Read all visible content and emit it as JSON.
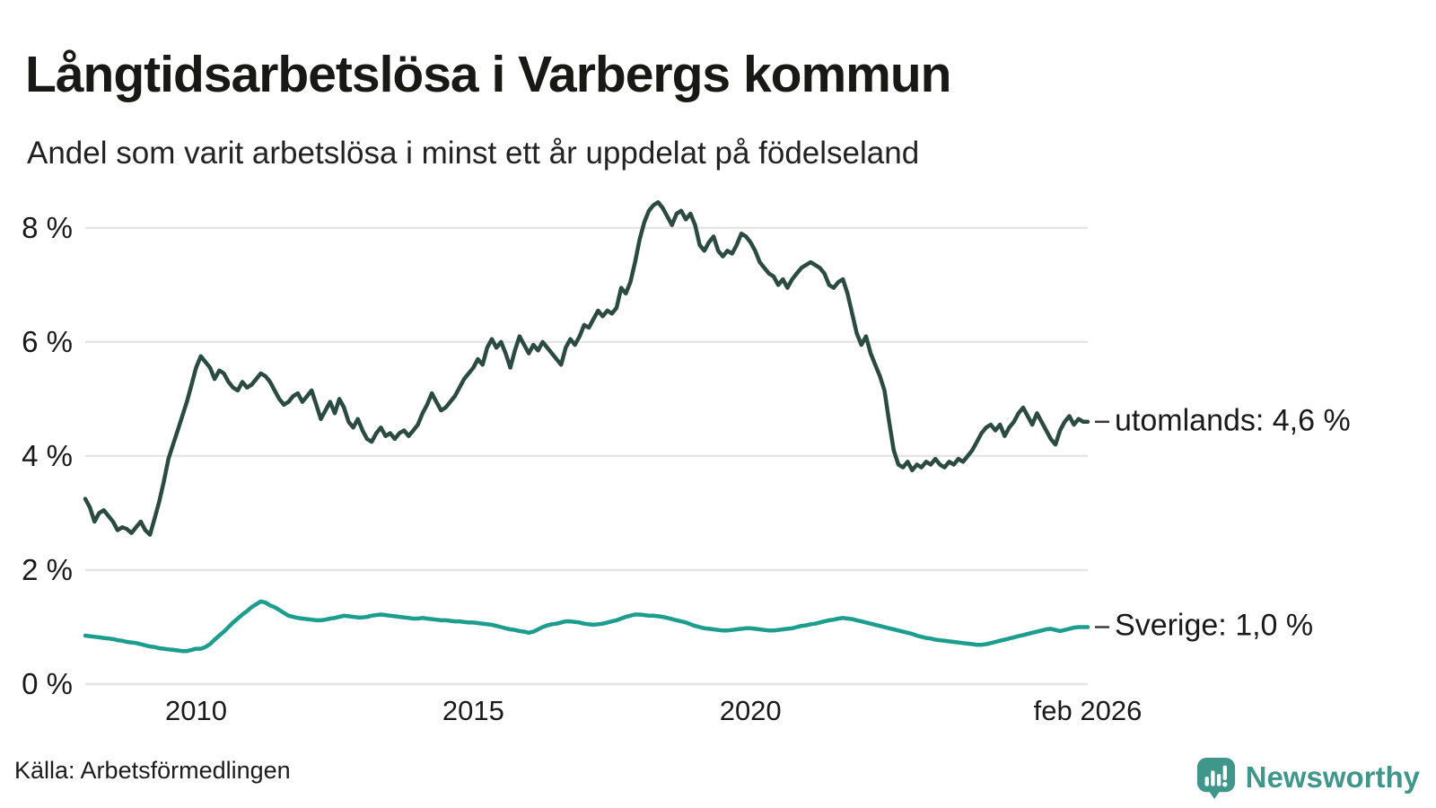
{
  "header": {
    "title": "Långtidsarbetslösa i Varbergs kommun",
    "subtitle": "Andel som varit arbetslösa i minst ett år uppdelat på födelseland"
  },
  "footer": {
    "source": "Källa: Arbetsförmedlingen",
    "brand": "Newsworthy"
  },
  "colors": {
    "utomlands": "#2b4a42",
    "sverige": "#1d9d8d",
    "grid": "#e5e5e8",
    "text": "#1a1a1a",
    "connector": "#3a3a3a",
    "brand": "#3f978b"
  },
  "chart_data": {
    "type": "line",
    "title": "Långtidsarbetslösa i Varbergs kommun",
    "subtitle": "Andel som varit arbetslösa i minst ett år uppdelat på födelseland",
    "x_start": 2008.0,
    "x_step_months": 1,
    "xlim": [
      2008.0,
      2026.083
    ],
    "ylim": [
      0,
      8.88
    ],
    "grid": true,
    "legend_position": "end-of-line-labels",
    "y_ticks": [
      {
        "value": 0,
        "label": "0 %"
      },
      {
        "value": 2,
        "label": "2 %"
      },
      {
        "value": 4,
        "label": "4 %"
      },
      {
        "value": 6,
        "label": "6 %"
      },
      {
        "value": 8,
        "label": "8 %"
      }
    ],
    "x_ticks": [
      {
        "value": 2010,
        "label": "2010"
      },
      {
        "value": 2015,
        "label": "2015"
      },
      {
        "value": 2020,
        "label": "2020"
      },
      {
        "value": 2026.083,
        "label": "feb 2026"
      }
    ],
    "series": [
      {
        "name": "utomlands",
        "end_label": "utomlands: 4,6 %",
        "end_value": "4,6 %",
        "color_key": "utomlands",
        "values": [
          3.25,
          3.1,
          2.85,
          3.0,
          3.05,
          2.95,
          2.85,
          2.7,
          2.75,
          2.72,
          2.65,
          2.75,
          2.85,
          2.7,
          2.62,
          2.9,
          3.2,
          3.55,
          3.95,
          4.2,
          4.45,
          4.7,
          4.95,
          5.25,
          5.55,
          5.75,
          5.65,
          5.55,
          5.35,
          5.5,
          5.45,
          5.3,
          5.2,
          5.15,
          5.3,
          5.2,
          5.25,
          5.35,
          5.45,
          5.4,
          5.3,
          5.15,
          5.0,
          4.9,
          4.95,
          5.05,
          5.1,
          4.95,
          5.05,
          5.15,
          4.9,
          4.65,
          4.8,
          4.95,
          4.75,
          5.0,
          4.85,
          4.6,
          4.5,
          4.65,
          4.45,
          4.3,
          4.25,
          4.4,
          4.5,
          4.35,
          4.4,
          4.3,
          4.4,
          4.45,
          4.35,
          4.45,
          4.55,
          4.75,
          4.9,
          5.1,
          4.95,
          4.8,
          4.85,
          4.95,
          5.05,
          5.2,
          5.35,
          5.45,
          5.55,
          5.7,
          5.6,
          5.9,
          6.05,
          5.9,
          6.0,
          5.8,
          5.55,
          5.85,
          6.1,
          5.95,
          5.8,
          5.95,
          5.85,
          6.0,
          5.9,
          5.8,
          5.7,
          5.6,
          5.9,
          6.05,
          5.95,
          6.1,
          6.3,
          6.25,
          6.4,
          6.55,
          6.45,
          6.55,
          6.5,
          6.6,
          6.95,
          6.85,
          7.05,
          7.4,
          7.8,
          8.1,
          8.3,
          8.4,
          8.45,
          8.35,
          8.2,
          8.05,
          8.25,
          8.3,
          8.15,
          8.25,
          8.05,
          7.7,
          7.6,
          7.75,
          7.85,
          7.6,
          7.5,
          7.6,
          7.55,
          7.7,
          7.9,
          7.85,
          7.75,
          7.6,
          7.4,
          7.3,
          7.2,
          7.15,
          7.0,
          7.1,
          6.95,
          7.1,
          7.2,
          7.3,
          7.35,
          7.4,
          7.35,
          7.3,
          7.2,
          7.0,
          6.95,
          7.05,
          7.1,
          6.85,
          6.5,
          6.15,
          5.95,
          6.1,
          5.8,
          5.6,
          5.4,
          5.15,
          4.6,
          4.1,
          3.85,
          3.8,
          3.9,
          3.75,
          3.85,
          3.8,
          3.9,
          3.85,
          3.95,
          3.85,
          3.8,
          3.9,
          3.85,
          3.95,
          3.9,
          4.0,
          4.1,
          4.25,
          4.4,
          4.5,
          4.55,
          4.45,
          4.55,
          4.35,
          4.5,
          4.6,
          4.75,
          4.85,
          4.7,
          4.55,
          4.75,
          4.6,
          4.45,
          4.3,
          4.2,
          4.45,
          4.6,
          4.7,
          4.55,
          4.65,
          4.6,
          4.6
        ]
      },
      {
        "name": "Sverige",
        "end_label": "Sverige: 1,0 %",
        "end_value": "1,0 %",
        "color_key": "sverige",
        "values": [
          0.85,
          0.84,
          0.83,
          0.82,
          0.81,
          0.8,
          0.79,
          0.77,
          0.76,
          0.74,
          0.73,
          0.72,
          0.7,
          0.68,
          0.66,
          0.65,
          0.63,
          0.62,
          0.61,
          0.6,
          0.59,
          0.58,
          0.58,
          0.6,
          0.62,
          0.62,
          0.65,
          0.7,
          0.78,
          0.85,
          0.92,
          1.0,
          1.08,
          1.15,
          1.22,
          1.28,
          1.35,
          1.4,
          1.45,
          1.43,
          1.38,
          1.35,
          1.3,
          1.25,
          1.2,
          1.18,
          1.16,
          1.15,
          1.14,
          1.13,
          1.12,
          1.12,
          1.13,
          1.15,
          1.16,
          1.18,
          1.2,
          1.19,
          1.18,
          1.17,
          1.17,
          1.18,
          1.2,
          1.21,
          1.22,
          1.21,
          1.2,
          1.19,
          1.18,
          1.17,
          1.16,
          1.15,
          1.15,
          1.16,
          1.15,
          1.14,
          1.13,
          1.12,
          1.12,
          1.11,
          1.1,
          1.1,
          1.09,
          1.08,
          1.08,
          1.07,
          1.06,
          1.05,
          1.04,
          1.02,
          1.0,
          0.98,
          0.96,
          0.95,
          0.93,
          0.92,
          0.9,
          0.92,
          0.96,
          1.0,
          1.03,
          1.05,
          1.06,
          1.08,
          1.1,
          1.1,
          1.09,
          1.08,
          1.06,
          1.05,
          1.04,
          1.05,
          1.06,
          1.08,
          1.1,
          1.12,
          1.15,
          1.18,
          1.2,
          1.22,
          1.22,
          1.21,
          1.2,
          1.2,
          1.19,
          1.18,
          1.16,
          1.14,
          1.12,
          1.1,
          1.08,
          1.05,
          1.02,
          1.0,
          0.98,
          0.97,
          0.96,
          0.95,
          0.94,
          0.94,
          0.95,
          0.96,
          0.97,
          0.98,
          0.98,
          0.97,
          0.96,
          0.95,
          0.94,
          0.94,
          0.95,
          0.96,
          0.97,
          0.98,
          1.0,
          1.02,
          1.03,
          1.05,
          1.06,
          1.08,
          1.1,
          1.12,
          1.13,
          1.15,
          1.16,
          1.15,
          1.14,
          1.12,
          1.1,
          1.08,
          1.06,
          1.04,
          1.02,
          1.0,
          0.98,
          0.96,
          0.94,
          0.92,
          0.9,
          0.88,
          0.85,
          0.83,
          0.81,
          0.8,
          0.78,
          0.77,
          0.76,
          0.75,
          0.74,
          0.73,
          0.72,
          0.71,
          0.7,
          0.69,
          0.69,
          0.7,
          0.72,
          0.74,
          0.76,
          0.78,
          0.8,
          0.82,
          0.84,
          0.86,
          0.88,
          0.9,
          0.92,
          0.94,
          0.96,
          0.97,
          0.95,
          0.93,
          0.95,
          0.97,
          0.99,
          1.0,
          1.0,
          1.0
        ]
      }
    ]
  }
}
